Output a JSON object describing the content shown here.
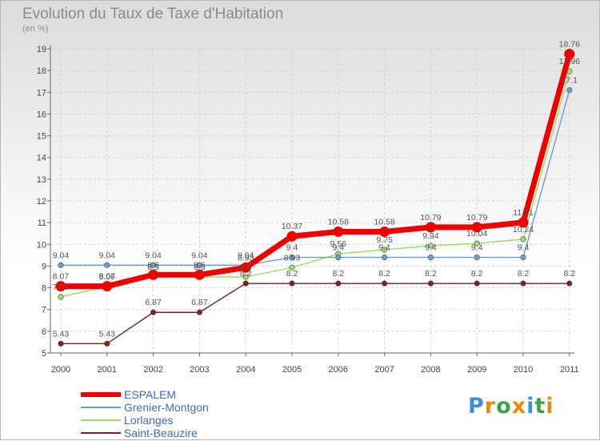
{
  "chart_data": {
    "type": "line",
    "title": "Evolution du Taux de Taxe d'Habitation",
    "subtitle": "(en %)",
    "xlabel": "",
    "ylabel": "",
    "ylim": [
      5,
      19
    ],
    "yticks": [
      5,
      6,
      7,
      8,
      9,
      10,
      11,
      12,
      13,
      14,
      15,
      16,
      17,
      18,
      19
    ],
    "grid": true,
    "legend_position": "bottom-left",
    "categories": [
      "2000",
      "2001",
      "2002",
      "2003",
      "2004",
      "2005",
      "2006",
      "2007",
      "2008",
      "2009",
      "2010",
      "2011"
    ],
    "series": [
      {
        "name": "ESPALEM",
        "color": "#ee0000",
        "values": [
          8.07,
          8.07,
          8.6,
          8.6,
          8.93,
          10.37,
          10.58,
          10.58,
          10.79,
          10.79,
          11.01,
          18.76
        ],
        "labels": [
          "8.07",
          "8.07",
          "8.6",
          "8.6",
          "8.93",
          "10.37",
          "10.58",
          "10.58",
          "10.79",
          "10.79",
          "11.01",
          "18.76"
        ]
      },
      {
        "name": "Grenier-Montgon",
        "color": "#6c9ccc",
        "values": [
          9.04,
          9.04,
          9.04,
          9.04,
          9.04,
          9.4,
          9.4,
          9.4,
          9.4,
          9.4,
          9.4,
          17.1
        ],
        "labels": [
          "9.04",
          "9.04",
          "9.04",
          "9.04",
          "9.04",
          "9.4",
          "9.4",
          "9.4",
          "9.4",
          "9.4",
          "9.4",
          "17.1"
        ]
      },
      {
        "name": "Lorlanges",
        "color": "#99dd66",
        "values": [
          7.58,
          8.06,
          8.5,
          8.5,
          8.5,
          8.93,
          9.56,
          9.75,
          9.94,
          10.04,
          10.24,
          17.96
        ],
        "labels": [
          "7.58",
          "8.06",
          "8.5",
          "8.5",
          "8.5",
          "8.93",
          "9.56",
          "9.75",
          "9.94",
          "10.04",
          "10.24",
          "17.96"
        ]
      },
      {
        "name": "Saint-Beauzire",
        "color": "#7a2222",
        "values": [
          5.43,
          5.43,
          6.87,
          6.87,
          8.2,
          8.2,
          8.2,
          8.2,
          8.2,
          8.2,
          8.2,
          8.2
        ],
        "labels": [
          "5.43",
          "5.43",
          "6.87",
          "6.87",
          "8.2",
          "8.2",
          "8.2",
          "8.2",
          "8.2",
          "8.2",
          "8.2",
          "8.2"
        ]
      }
    ]
  },
  "legend": {
    "items": [
      "ESPALEM",
      "Grenier-Montgon",
      "Lorlanges",
      "Saint-Beauzire"
    ]
  },
  "logo": {
    "letters": [
      "P",
      "r",
      "o",
      "x",
      "i",
      "t",
      "i"
    ],
    "colors": [
      "#3f8fd8",
      "#e88a10",
      "#3fa24a",
      "#e88a10",
      "#3f8fd8",
      "#3fa24a",
      "#e88a10"
    ]
  }
}
